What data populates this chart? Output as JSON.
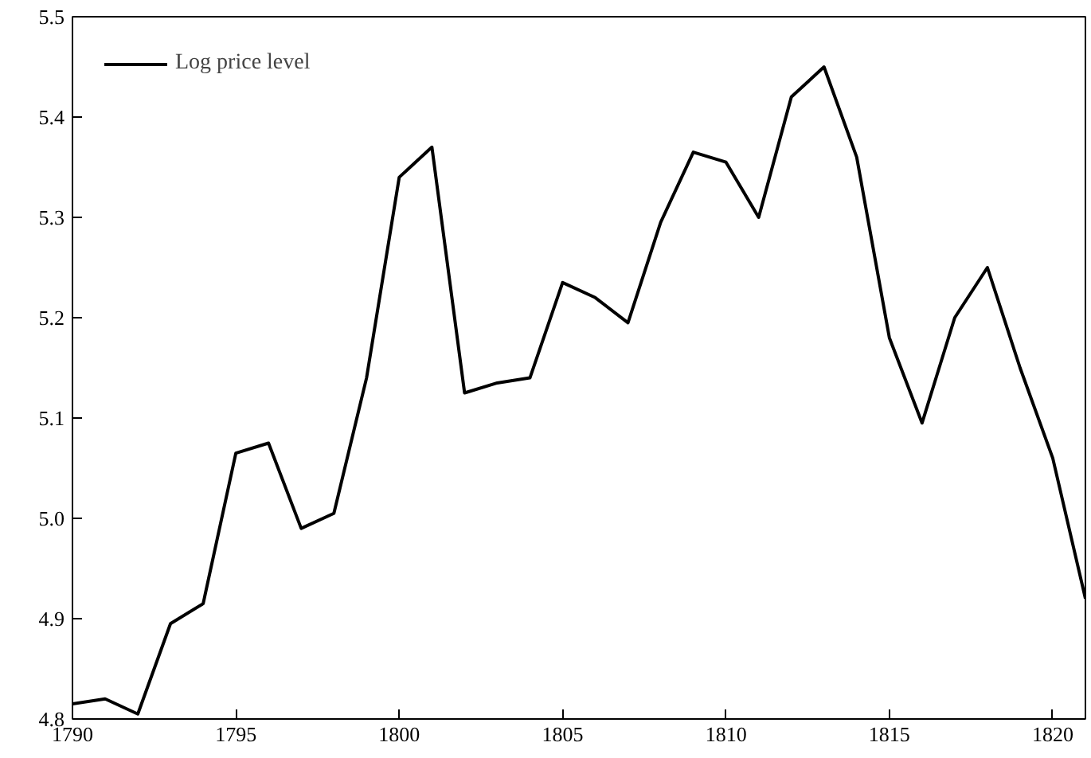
{
  "chart_data": {
    "type": "line",
    "x": [
      1790,
      1791,
      1792,
      1793,
      1794,
      1795,
      1796,
      1797,
      1798,
      1799,
      1800,
      1801,
      1802,
      1803,
      1804,
      1805,
      1806,
      1807,
      1808,
      1809,
      1810,
      1811,
      1812,
      1813,
      1814,
      1815,
      1816,
      1817,
      1818,
      1819,
      1820,
      1821
    ],
    "series": [
      {
        "name": "Log price level",
        "color": "#000000",
        "values": [
          4.815,
          4.82,
          4.805,
          4.895,
          4.915,
          5.065,
          5.075,
          4.99,
          5.005,
          5.14,
          5.34,
          5.37,
          5.125,
          5.135,
          5.14,
          5.235,
          5.22,
          5.195,
          5.295,
          5.365,
          5.355,
          5.3,
          5.42,
          5.45,
          5.36,
          5.18,
          5.095,
          5.2,
          5.25,
          5.15,
          5.06,
          4.92
        ]
      }
    ],
    "xlim": [
      1790,
      1821
    ],
    "xticks": [
      1790,
      1795,
      1800,
      1805,
      1810,
      1815,
      1820
    ],
    "ylim": [
      4.8,
      5.5
    ],
    "yticks": [
      4.8,
      4.9,
      {
        "value": 5,
        "label": "5.0"
      },
      5.1,
      5.2,
      5.3,
      5.4,
      5.5
    ],
    "legend": "top left",
    "grid": false
  }
}
